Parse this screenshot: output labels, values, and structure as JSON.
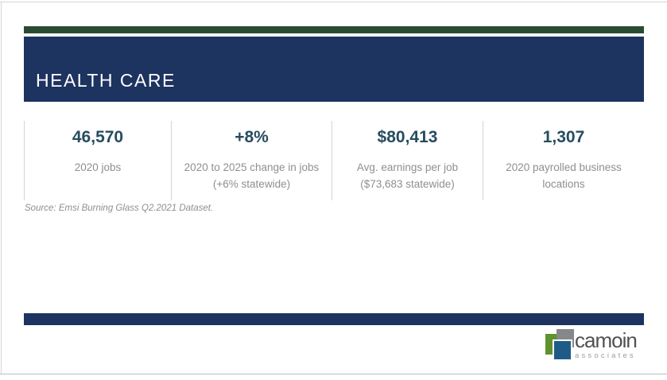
{
  "header": {
    "title": "HEALTH CARE"
  },
  "stats": [
    {
      "value": "46,570",
      "label": "2020 jobs"
    },
    {
      "value": "+8%",
      "label": "2020 to 2025 change in jobs (+6% statewide)"
    },
    {
      "value": "$80,413",
      "label": "Avg. earnings per job ($73,683 statewide)"
    },
    {
      "value": "1,307",
      "label": "2020 payrolled business locations"
    }
  ],
  "source": {
    "text": "Source: Emsi Burning Glass Q2.2021 Dataset."
  },
  "logo": {
    "wordmark": "camoin",
    "subtext": "associates"
  },
  "colors": {
    "navy": "#1d3360",
    "accent_green": "#2a4b33",
    "stat_value": "#264c5f",
    "label_gray": "#8f8f8f",
    "logo_green": "#5f922c",
    "logo_gray": "#85878a",
    "logo_blue": "#1e5c87"
  }
}
